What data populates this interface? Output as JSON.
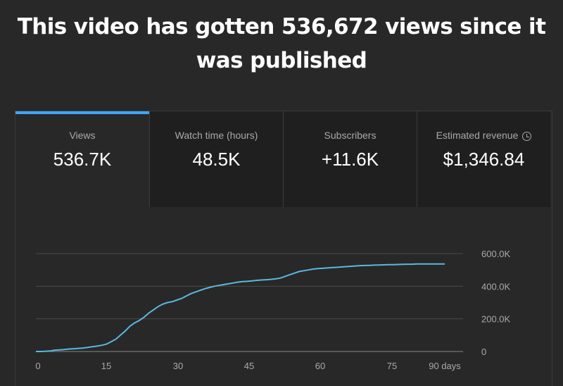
{
  "headline": "This video has gotten 536,672 views since it was published",
  "metrics": [
    {
      "label": "Views",
      "value": "536.7K",
      "active": true
    },
    {
      "label": "Watch time (hours)",
      "value": "48.5K",
      "active": false
    },
    {
      "label": "Subscribers",
      "value": "+11.6K",
      "active": false
    },
    {
      "label": "Estimated revenue",
      "value": "$1,346.84",
      "active": false,
      "icon": "clock-icon"
    }
  ],
  "colors": {
    "accent": "#3ea6ff",
    "line": "#5bb8e0",
    "background": "#282828"
  },
  "chart_data": {
    "type": "line",
    "series": [
      {
        "x": [
          0,
          1,
          2,
          3,
          4,
          5,
          6,
          7,
          8,
          9,
          10,
          11,
          12,
          13,
          14,
          15,
          16,
          17,
          18,
          19,
          20,
          21,
          22,
          23,
          24,
          25,
          26,
          27,
          28,
          29,
          30,
          31,
          32,
          33,
          34,
          35,
          36,
          37,
          38,
          39,
          40,
          41,
          42,
          43,
          44,
          45,
          46,
          47,
          48,
          49,
          50,
          51,
          52,
          53,
          54,
          55,
          56,
          57,
          58,
          59,
          60,
          61,
          62,
          63,
          64,
          65,
          66,
          67,
          68,
          69,
          70,
          71,
          72,
          73,
          74,
          75,
          76,
          77,
          78,
          79,
          80,
          81,
          82,
          83,
          84,
          85,
          86,
          87
        ],
        "y": [
          0,
          0,
          1000,
          3000,
          8000,
          10000,
          12000,
          15000,
          17000,
          19000,
          21000,
          25000,
          29000,
          33000,
          38000,
          45000,
          60000,
          75000,
          100000,
          125000,
          155000,
          175000,
          190000,
          210000,
          235000,
          255000,
          275000,
          290000,
          300000,
          305000,
          315000,
          325000,
          340000,
          355000,
          365000,
          375000,
          385000,
          393000,
          400000,
          405000,
          410000,
          415000,
          420000,
          425000,
          428000,
          430000,
          433000,
          436000,
          438000,
          440000,
          442000,
          445000,
          450000,
          460000,
          470000,
          480000,
          490000,
          495000,
          500000,
          505000,
          508000,
          510000,
          512000,
          514000,
          516000,
          518000,
          520000,
          522000,
          524000,
          526000,
          527000,
          528000,
          529000,
          530000,
          531000,
          532000,
          532000,
          533000,
          534000,
          535000,
          535000,
          536000,
          536000,
          536000,
          536000,
          536500,
          536600,
          536700
        ]
      }
    ],
    "xticks": [
      "0",
      "15",
      "30",
      "45",
      "60",
      "75",
      "90 days"
    ],
    "xtick_values": [
      0,
      15,
      30,
      45,
      60,
      75,
      90
    ],
    "yticks": [
      "0",
      "200.0K",
      "400.0K",
      "600.0K"
    ],
    "ytick_values": [
      0,
      200000,
      400000,
      600000
    ],
    "xlim": [
      0,
      90
    ],
    "ylim": [
      0,
      600000
    ],
    "grid": true
  }
}
